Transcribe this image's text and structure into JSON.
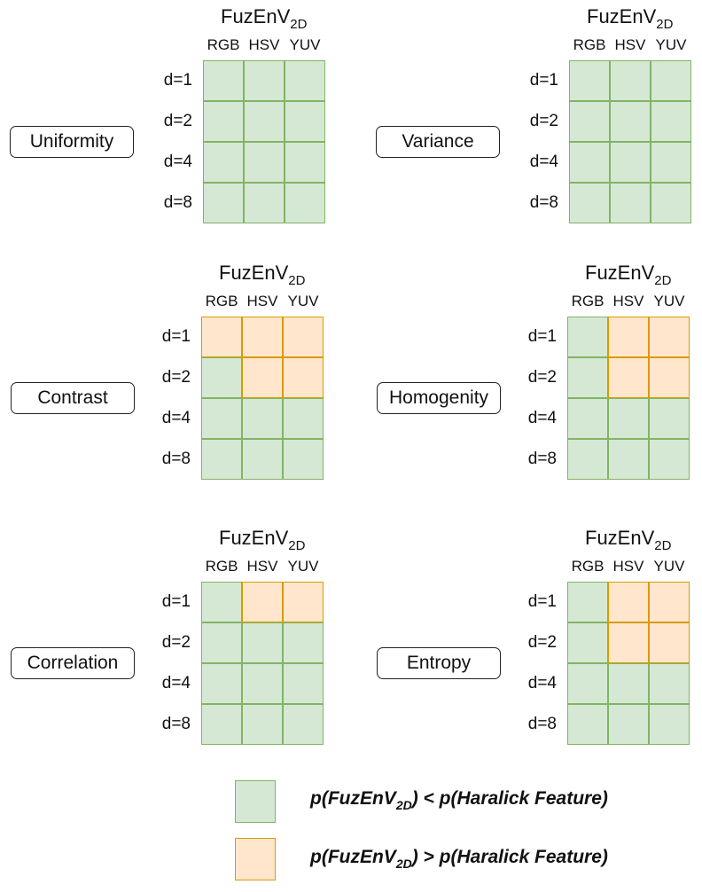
{
  "panels": [
    {
      "feature": "Uniformity",
      "title_main": "FuzEnV",
      "title_sub": "2D",
      "columns": [
        "RGB",
        "HSV",
        "YUV"
      ],
      "rows": [
        "d=1",
        "d=2",
        "d=4",
        "d=8"
      ],
      "cells": [
        [
          "g",
          "g",
          "g"
        ],
        [
          "g",
          "g",
          "g"
        ],
        [
          "g",
          "g",
          "g"
        ],
        [
          "g",
          "g",
          "g"
        ]
      ]
    },
    {
      "feature": "Variance",
      "title_main": "FuzEnV",
      "title_sub": "2D",
      "columns": [
        "RGB",
        "HSV",
        "YUV"
      ],
      "rows": [
        "d=1",
        "d=2",
        "d=4",
        "d=8"
      ],
      "cells": [
        [
          "g",
          "g",
          "g"
        ],
        [
          "g",
          "g",
          "g"
        ],
        [
          "g",
          "g",
          "g"
        ],
        [
          "g",
          "g",
          "g"
        ]
      ]
    },
    {
      "feature": "Contrast",
      "title_main": "FuzEnV",
      "title_sub": "2D",
      "columns": [
        "RGB",
        "HSV",
        "YUV"
      ],
      "rows": [
        "d=1",
        "d=2",
        "d=4",
        "d=8"
      ],
      "cells": [
        [
          "o",
          "o",
          "o"
        ],
        [
          "g",
          "o",
          "o"
        ],
        [
          "g",
          "g",
          "g"
        ],
        [
          "g",
          "g",
          "g"
        ]
      ]
    },
    {
      "feature": "Homogenity",
      "title_main": "FuzEnV",
      "title_sub": "2D",
      "columns": [
        "RGB",
        "HSV",
        "YUV"
      ],
      "rows": [
        "d=1",
        "d=2",
        "d=4",
        "d=8"
      ],
      "cells": [
        [
          "g",
          "o",
          "o"
        ],
        [
          "g",
          "o",
          "o"
        ],
        [
          "g",
          "g",
          "g"
        ],
        [
          "g",
          "g",
          "g"
        ]
      ]
    },
    {
      "feature": "Correlation",
      "title_main": "FuzEnV",
      "title_sub": "2D",
      "columns": [
        "RGB",
        "HSV",
        "YUV"
      ],
      "rows": [
        "d=1",
        "d=2",
        "d=4",
        "d=8"
      ],
      "cells": [
        [
          "g",
          "o",
          "o"
        ],
        [
          "g",
          "g",
          "g"
        ],
        [
          "g",
          "g",
          "g"
        ],
        [
          "g",
          "g",
          "g"
        ]
      ]
    },
    {
      "feature": "Entropy",
      "title_main": "FuzEnV",
      "title_sub": "2D",
      "columns": [
        "RGB",
        "HSV",
        "YUV"
      ],
      "rows": [
        "d=1",
        "d=2",
        "d=4",
        "d=8"
      ],
      "cells": [
        [
          "g",
          "o",
          "o"
        ],
        [
          "g",
          "o",
          "o"
        ],
        [
          "g",
          "g",
          "g"
        ],
        [
          "g",
          "g",
          "g"
        ]
      ]
    }
  ],
  "legend": {
    "green": {
      "color": "#d5e8d4",
      "pre": "p(FuzEnV",
      "sub": "2D",
      "post": ") < p(Haralick Feature)"
    },
    "orange": {
      "color": "#ffe6cc",
      "pre": "p(FuzEnV",
      "sub": "2D",
      "post": ") > p(Haralick Feature)"
    }
  }
}
